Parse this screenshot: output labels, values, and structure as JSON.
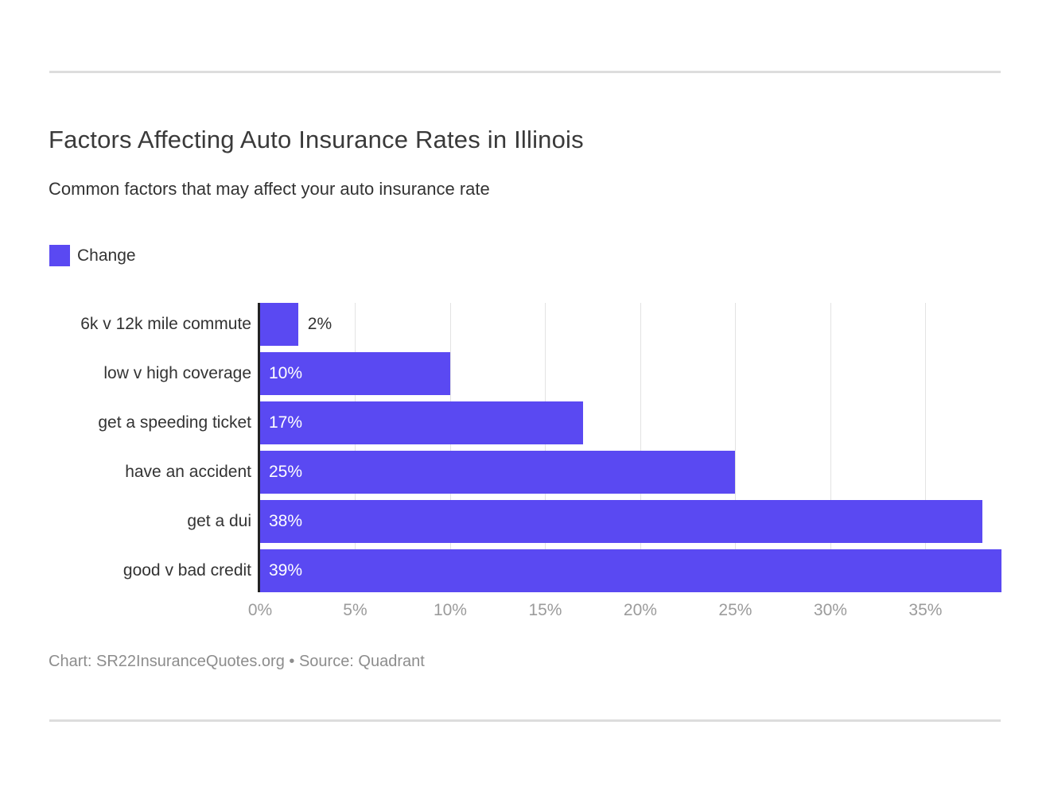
{
  "page": {
    "title": "Factors Affecting Auto Insurance Rates in Illinois",
    "subtitle": "Common factors that may affect your auto insurance rate",
    "footer": "Chart: SR22InsuranceQuotes.org • Source: Quadrant"
  },
  "legend": {
    "label": "Change"
  },
  "colors": {
    "bar": "#5a49f2",
    "axis": "#222222",
    "grid": "#e3e3e3",
    "tick": "#9b9b9b",
    "divider": "#dddddd"
  },
  "chart_data": {
    "type": "bar",
    "orientation": "horizontal",
    "title": "Factors Affecting Auto Insurance Rates in Illinois",
    "subtitle": "Common factors that may affect your auto insurance rate",
    "series_name": "Change",
    "categories": [
      "6k v 12k mile commute",
      "low v high coverage",
      "get a speeding ticket",
      "have an accident",
      "get a dui",
      "good v bad credit"
    ],
    "values": [
      2,
      10,
      17,
      25,
      38,
      39
    ],
    "value_labels": [
      "2%",
      "10%",
      "17%",
      "25%",
      "38%",
      "39%"
    ],
    "xlabel": "",
    "ylabel": "",
    "xlim": [
      0,
      39
    ],
    "x_tick_values": [
      0,
      5,
      10,
      15,
      20,
      25,
      30,
      35
    ],
    "x_tick_labels": [
      "0%",
      "5%",
      "10%",
      "15%",
      "20%",
      "25%",
      "30%",
      "35%"
    ],
    "grid": true,
    "legend_position": "top-left",
    "inside_label_threshold": 5
  }
}
